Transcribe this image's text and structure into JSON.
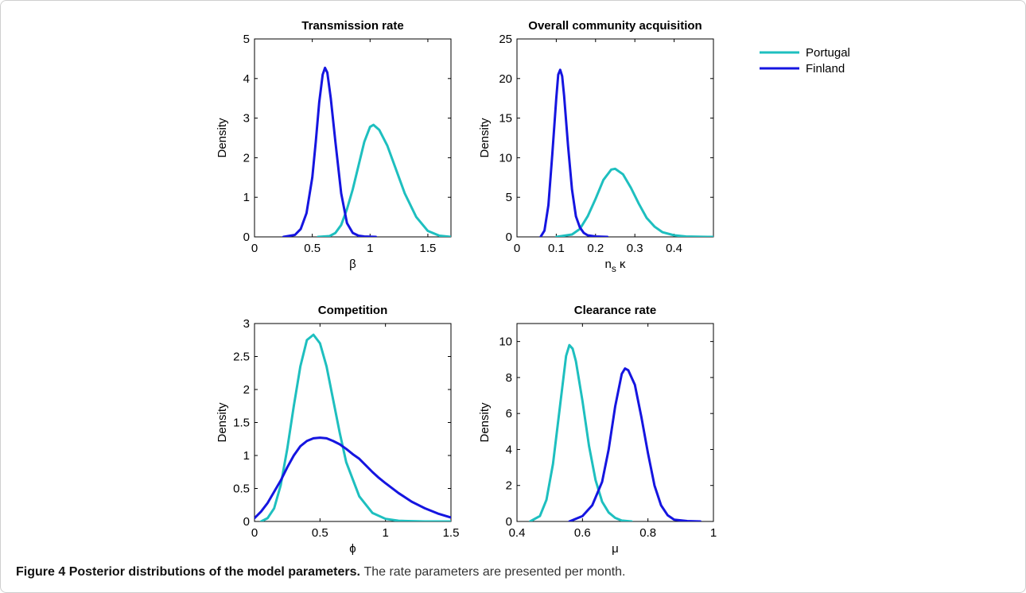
{
  "colors": {
    "portugal": "#1EBFBF",
    "finland": "#1515E0",
    "axis": "#000000"
  },
  "legend": {
    "placement": "top-right",
    "items": [
      {
        "name": "Portugal",
        "color": "#1EBFBF"
      },
      {
        "name": "Finland",
        "color": "#1515E0"
      }
    ]
  },
  "caption": {
    "label": "Figure 4",
    "title": "Posterior distributions of the model parameters.",
    "text": "The rate parameters are presented per month."
  },
  "chart_data": [
    {
      "type": "line",
      "title": "Transmission rate",
      "xlabel": "β",
      "ylabel": "Density",
      "xlim": [
        0,
        1.7
      ],
      "ylim": [
        0,
        5
      ],
      "xticks": [
        0,
        0.5,
        1,
        1.5
      ],
      "xtick_labels": [
        "0",
        "0.5",
        "1",
        "1.5"
      ],
      "yticks": [
        0,
        1,
        2,
        3,
        4,
        5
      ],
      "ytick_labels": [
        "0",
        "1",
        "2",
        "3",
        "4",
        "5"
      ],
      "series": [
        {
          "name": "Portugal",
          "color": "#1EBFBF",
          "x": [
            0.55,
            0.65,
            0.7,
            0.75,
            0.8,
            0.85,
            0.9,
            0.95,
            1.0,
            1.03,
            1.08,
            1.15,
            1.2,
            1.3,
            1.4,
            1.5,
            1.6,
            1.7
          ],
          "y": [
            0,
            0.02,
            0.1,
            0.3,
            0.7,
            1.2,
            1.8,
            2.4,
            2.78,
            2.83,
            2.7,
            2.3,
            1.9,
            1.1,
            0.5,
            0.15,
            0.03,
            0
          ]
        },
        {
          "name": "Finland",
          "color": "#1515E0",
          "x": [
            0.25,
            0.35,
            0.4,
            0.45,
            0.5,
            0.53,
            0.56,
            0.59,
            0.61,
            0.63,
            0.66,
            0.7,
            0.75,
            0.8,
            0.85,
            0.9,
            0.95,
            1.05
          ],
          "y": [
            0,
            0.05,
            0.2,
            0.6,
            1.5,
            2.4,
            3.4,
            4.1,
            4.27,
            4.15,
            3.5,
            2.4,
            1.1,
            0.35,
            0.1,
            0.03,
            0.01,
            0
          ]
        }
      ]
    },
    {
      "type": "line",
      "title": "Overall community acquisition",
      "xlabel": "n",
      "xlabel_sub": "s",
      "xlabel_suffix": " κ",
      "ylabel": "Density",
      "xlim": [
        0,
        0.5
      ],
      "ylim": [
        0,
        25
      ],
      "xticks": [
        0,
        0.1,
        0.2,
        0.3,
        0.4
      ],
      "xtick_labels": [
        "0",
        "0.1",
        "0.2",
        "0.3",
        "0.4"
      ],
      "yticks": [
        0,
        5,
        10,
        15,
        20,
        25
      ],
      "ytick_labels": [
        "0",
        "5",
        "10",
        "15",
        "20",
        "25"
      ],
      "series": [
        {
          "name": "Portugal",
          "color": "#1EBFBF",
          "x": [
            0.1,
            0.14,
            0.16,
            0.18,
            0.2,
            0.22,
            0.24,
            0.25,
            0.27,
            0.29,
            0.31,
            0.33,
            0.35,
            0.37,
            0.4,
            0.43,
            0.47,
            0.5
          ],
          "y": [
            0,
            0.3,
            1.0,
            2.6,
            4.8,
            7.2,
            8.5,
            8.6,
            7.9,
            6.2,
            4.2,
            2.4,
            1.3,
            0.6,
            0.2,
            0.05,
            0.01,
            0
          ]
        },
        {
          "name": "Finland",
          "color": "#1515E0",
          "x": [
            0.06,
            0.07,
            0.08,
            0.09,
            0.1,
            0.105,
            0.11,
            0.115,
            0.12,
            0.13,
            0.14,
            0.15,
            0.16,
            0.17,
            0.18,
            0.2,
            0.23
          ],
          "y": [
            0,
            0.8,
            4.0,
            10.5,
            17.5,
            20.5,
            21.1,
            20.3,
            17.8,
            11.5,
            6.0,
            2.6,
            1.2,
            0.5,
            0.2,
            0.05,
            0
          ]
        }
      ]
    },
    {
      "type": "line",
      "title": "Competition",
      "xlabel": "ϕ",
      "ylabel": "Density",
      "xlim": [
        0,
        1.5
      ],
      "ylim": [
        0,
        3
      ],
      "xticks": [
        0,
        0.5,
        1,
        1.5
      ],
      "xtick_labels": [
        "0",
        "0.5",
        "1",
        "1.5"
      ],
      "yticks": [
        0,
        0.5,
        1,
        1.5,
        2,
        2.5,
        3
      ],
      "ytick_labels": [
        "0",
        "0.5",
        "1",
        "1.5",
        "2",
        "2.5",
        "3"
      ],
      "series": [
        {
          "name": "Portugal",
          "color": "#1EBFBF",
          "x": [
            0.05,
            0.1,
            0.15,
            0.2,
            0.25,
            0.3,
            0.35,
            0.4,
            0.45,
            0.5,
            0.55,
            0.6,
            0.65,
            0.7,
            0.8,
            0.9,
            1.0,
            1.1,
            1.3,
            1.5
          ],
          "y": [
            0,
            0.05,
            0.2,
            0.55,
            1.1,
            1.75,
            2.35,
            2.75,
            2.83,
            2.7,
            2.35,
            1.85,
            1.35,
            0.9,
            0.38,
            0.13,
            0.04,
            0.01,
            0,
            0
          ]
        },
        {
          "name": "Finland",
          "color": "#1515E0",
          "x": [
            0,
            0.05,
            0.1,
            0.15,
            0.2,
            0.25,
            0.3,
            0.35,
            0.4,
            0.45,
            0.5,
            0.55,
            0.6,
            0.65,
            0.7,
            0.75,
            0.8,
            0.85,
            0.9,
            0.95,
            1.0,
            1.1,
            1.2,
            1.3,
            1.4,
            1.5
          ],
          "y": [
            0.05,
            0.15,
            0.28,
            0.45,
            0.62,
            0.82,
            1.0,
            1.14,
            1.22,
            1.26,
            1.27,
            1.26,
            1.22,
            1.17,
            1.1,
            1.02,
            0.95,
            0.85,
            0.75,
            0.66,
            0.58,
            0.43,
            0.3,
            0.2,
            0.12,
            0.06
          ]
        }
      ]
    },
    {
      "type": "line",
      "title": "Clearance rate",
      "xlabel": "μ",
      "ylabel": "Density",
      "xlim": [
        0.4,
        1
      ],
      "ylim": [
        0,
        11
      ],
      "xticks": [
        0.4,
        0.6,
        0.8,
        1
      ],
      "xtick_labels": [
        "0.4",
        "0.6",
        "0.8",
        "1"
      ],
      "yticks": [
        0,
        2,
        4,
        6,
        8,
        10
      ],
      "ytick_labels": [
        "0",
        "2",
        "4",
        "6",
        "8",
        "10"
      ],
      "series": [
        {
          "name": "Portugal",
          "color": "#1EBFBF",
          "x": [
            0.44,
            0.47,
            0.49,
            0.51,
            0.53,
            0.55,
            0.56,
            0.57,
            0.58,
            0.6,
            0.62,
            0.64,
            0.66,
            0.68,
            0.7,
            0.72,
            0.75
          ],
          "y": [
            0,
            0.3,
            1.2,
            3.2,
            6.2,
            9.2,
            9.8,
            9.6,
            8.9,
            6.7,
            4.2,
            2.3,
            1.1,
            0.5,
            0.2,
            0.05,
            0
          ]
        },
        {
          "name": "Finland",
          "color": "#1515E0",
          "x": [
            0.56,
            0.6,
            0.63,
            0.66,
            0.68,
            0.7,
            0.72,
            0.73,
            0.74,
            0.76,
            0.78,
            0.8,
            0.82,
            0.84,
            0.86,
            0.88,
            0.92,
            0.96
          ],
          "y": [
            0,
            0.3,
            0.9,
            2.2,
            4.0,
            6.4,
            8.2,
            8.5,
            8.4,
            7.6,
            5.8,
            3.8,
            2.0,
            0.9,
            0.35,
            0.1,
            0.02,
            0
          ]
        }
      ]
    }
  ]
}
